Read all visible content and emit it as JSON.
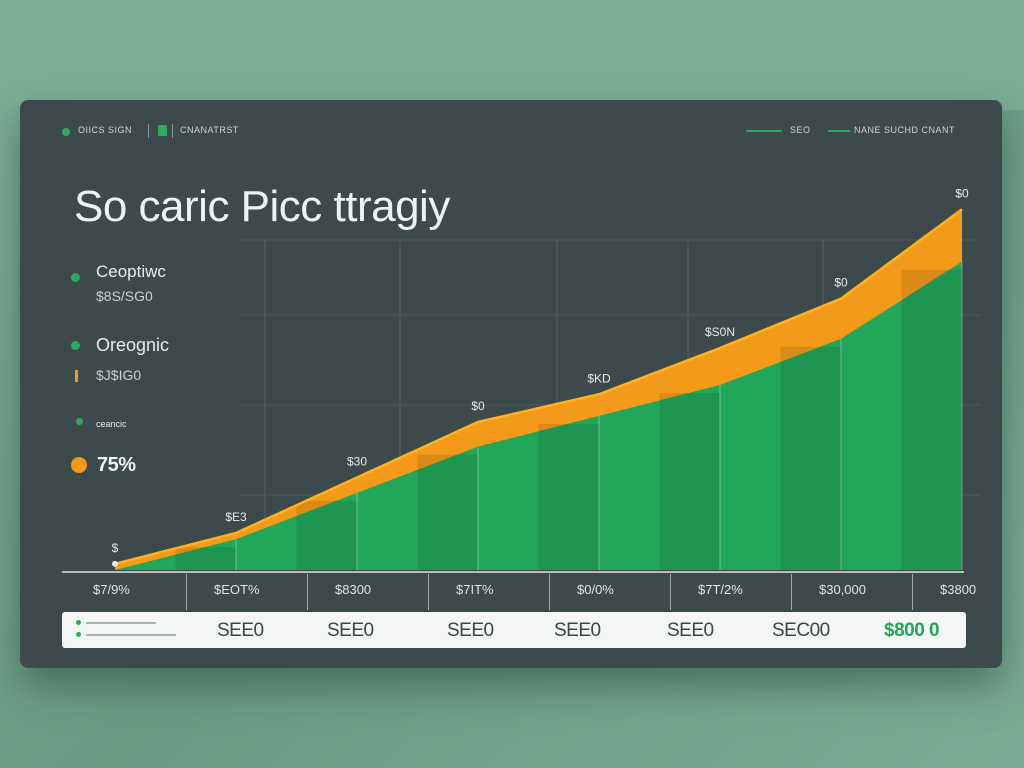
{
  "header": {
    "left_label": "OIICS SIGN",
    "mid_label": "CNANATRST",
    "right_label_1": "SEO",
    "right_label_2": "NANE SUCHD CNANT"
  },
  "title": "So caric Picc ttragiy",
  "sidebar": {
    "items": [
      {
        "label": "Ceoptiwc",
        "value": "$8S/SG0"
      },
      {
        "label": "Oreognic",
        "value": "$J$IG0"
      },
      {
        "label": "ceancic",
        "value": ""
      }
    ],
    "percent": "75%"
  },
  "chart_data": {
    "type": "area",
    "title": "So caric Picc ttragiy",
    "categories": [
      "$7/9%",
      "$EOT%",
      "$8300",
      "$7IT%",
      "$0/0%",
      "$7T/2%",
      "$30,000",
      "$3800"
    ],
    "series": [
      {
        "name": "",
        "color": "#22a65a",
        "values": [
          0,
          10,
          25,
          40,
          50,
          60,
          75,
          100
        ]
      },
      {
        "name": "",
        "color": "#f39a1a",
        "values": [
          2,
          12,
          30,
          48,
          57,
          72,
          88,
          117
        ]
      }
    ],
    "data_labels": [
      "$",
      "$E3",
      "$30",
      "$0",
      "$KD",
      "$S0N",
      "$0",
      "$0"
    ],
    "ylim": [
      0,
      120
    ],
    "grid": true
  },
  "bottom_row": {
    "cells": [
      "SEE0",
      "SEE0",
      "SEE0",
      "SEE0",
      "SEE0",
      "SEC00",
      "$800 0"
    ]
  },
  "colors": {
    "panel": "#3d4a4b",
    "background": "#7cae96",
    "green": "#22a65a",
    "orange": "#f39a1a"
  }
}
